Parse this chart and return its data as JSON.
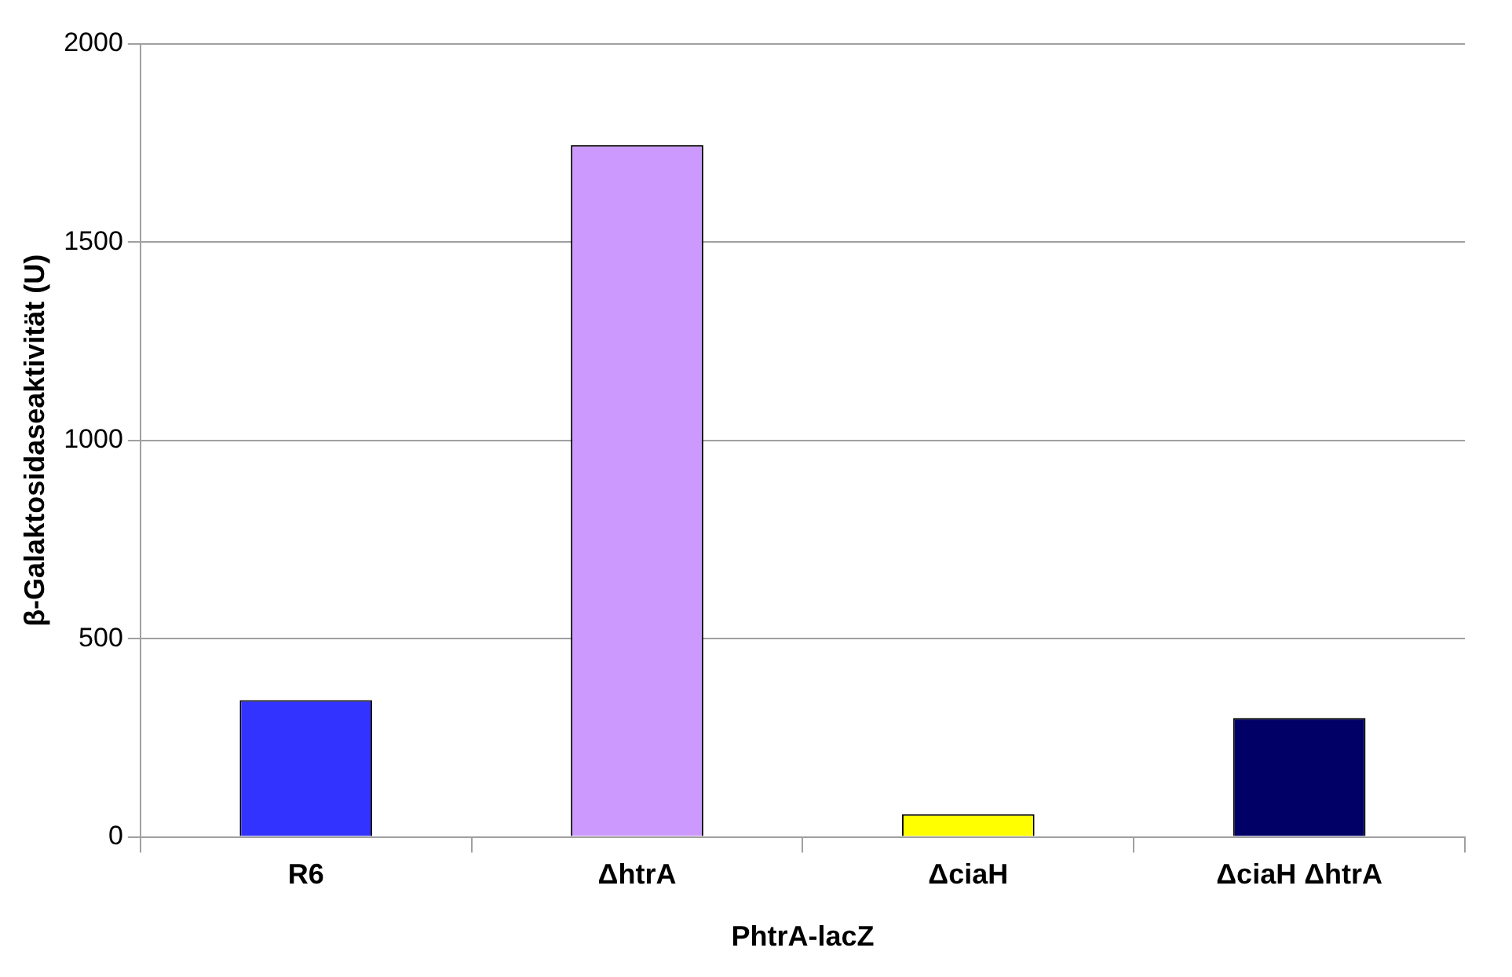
{
  "chart_data": {
    "type": "bar",
    "categories": [
      "R6",
      "ΔhtrA",
      "ΔciaH",
      "ΔciaH ΔhtrA"
    ],
    "values": [
      345,
      1745,
      57,
      300
    ],
    "colors": [
      "#3333ff",
      "#cc99ff",
      "#ffff00",
      "#000066"
    ],
    "xlabel": "PhtrA-lacZ",
    "ylabel": "β-Galaktosidaseaktivität (U)",
    "ylim": [
      0,
      2000
    ],
    "yticks": [
      0,
      500,
      1000,
      1500,
      2000
    ],
    "grid": "y",
    "legend": false
  }
}
